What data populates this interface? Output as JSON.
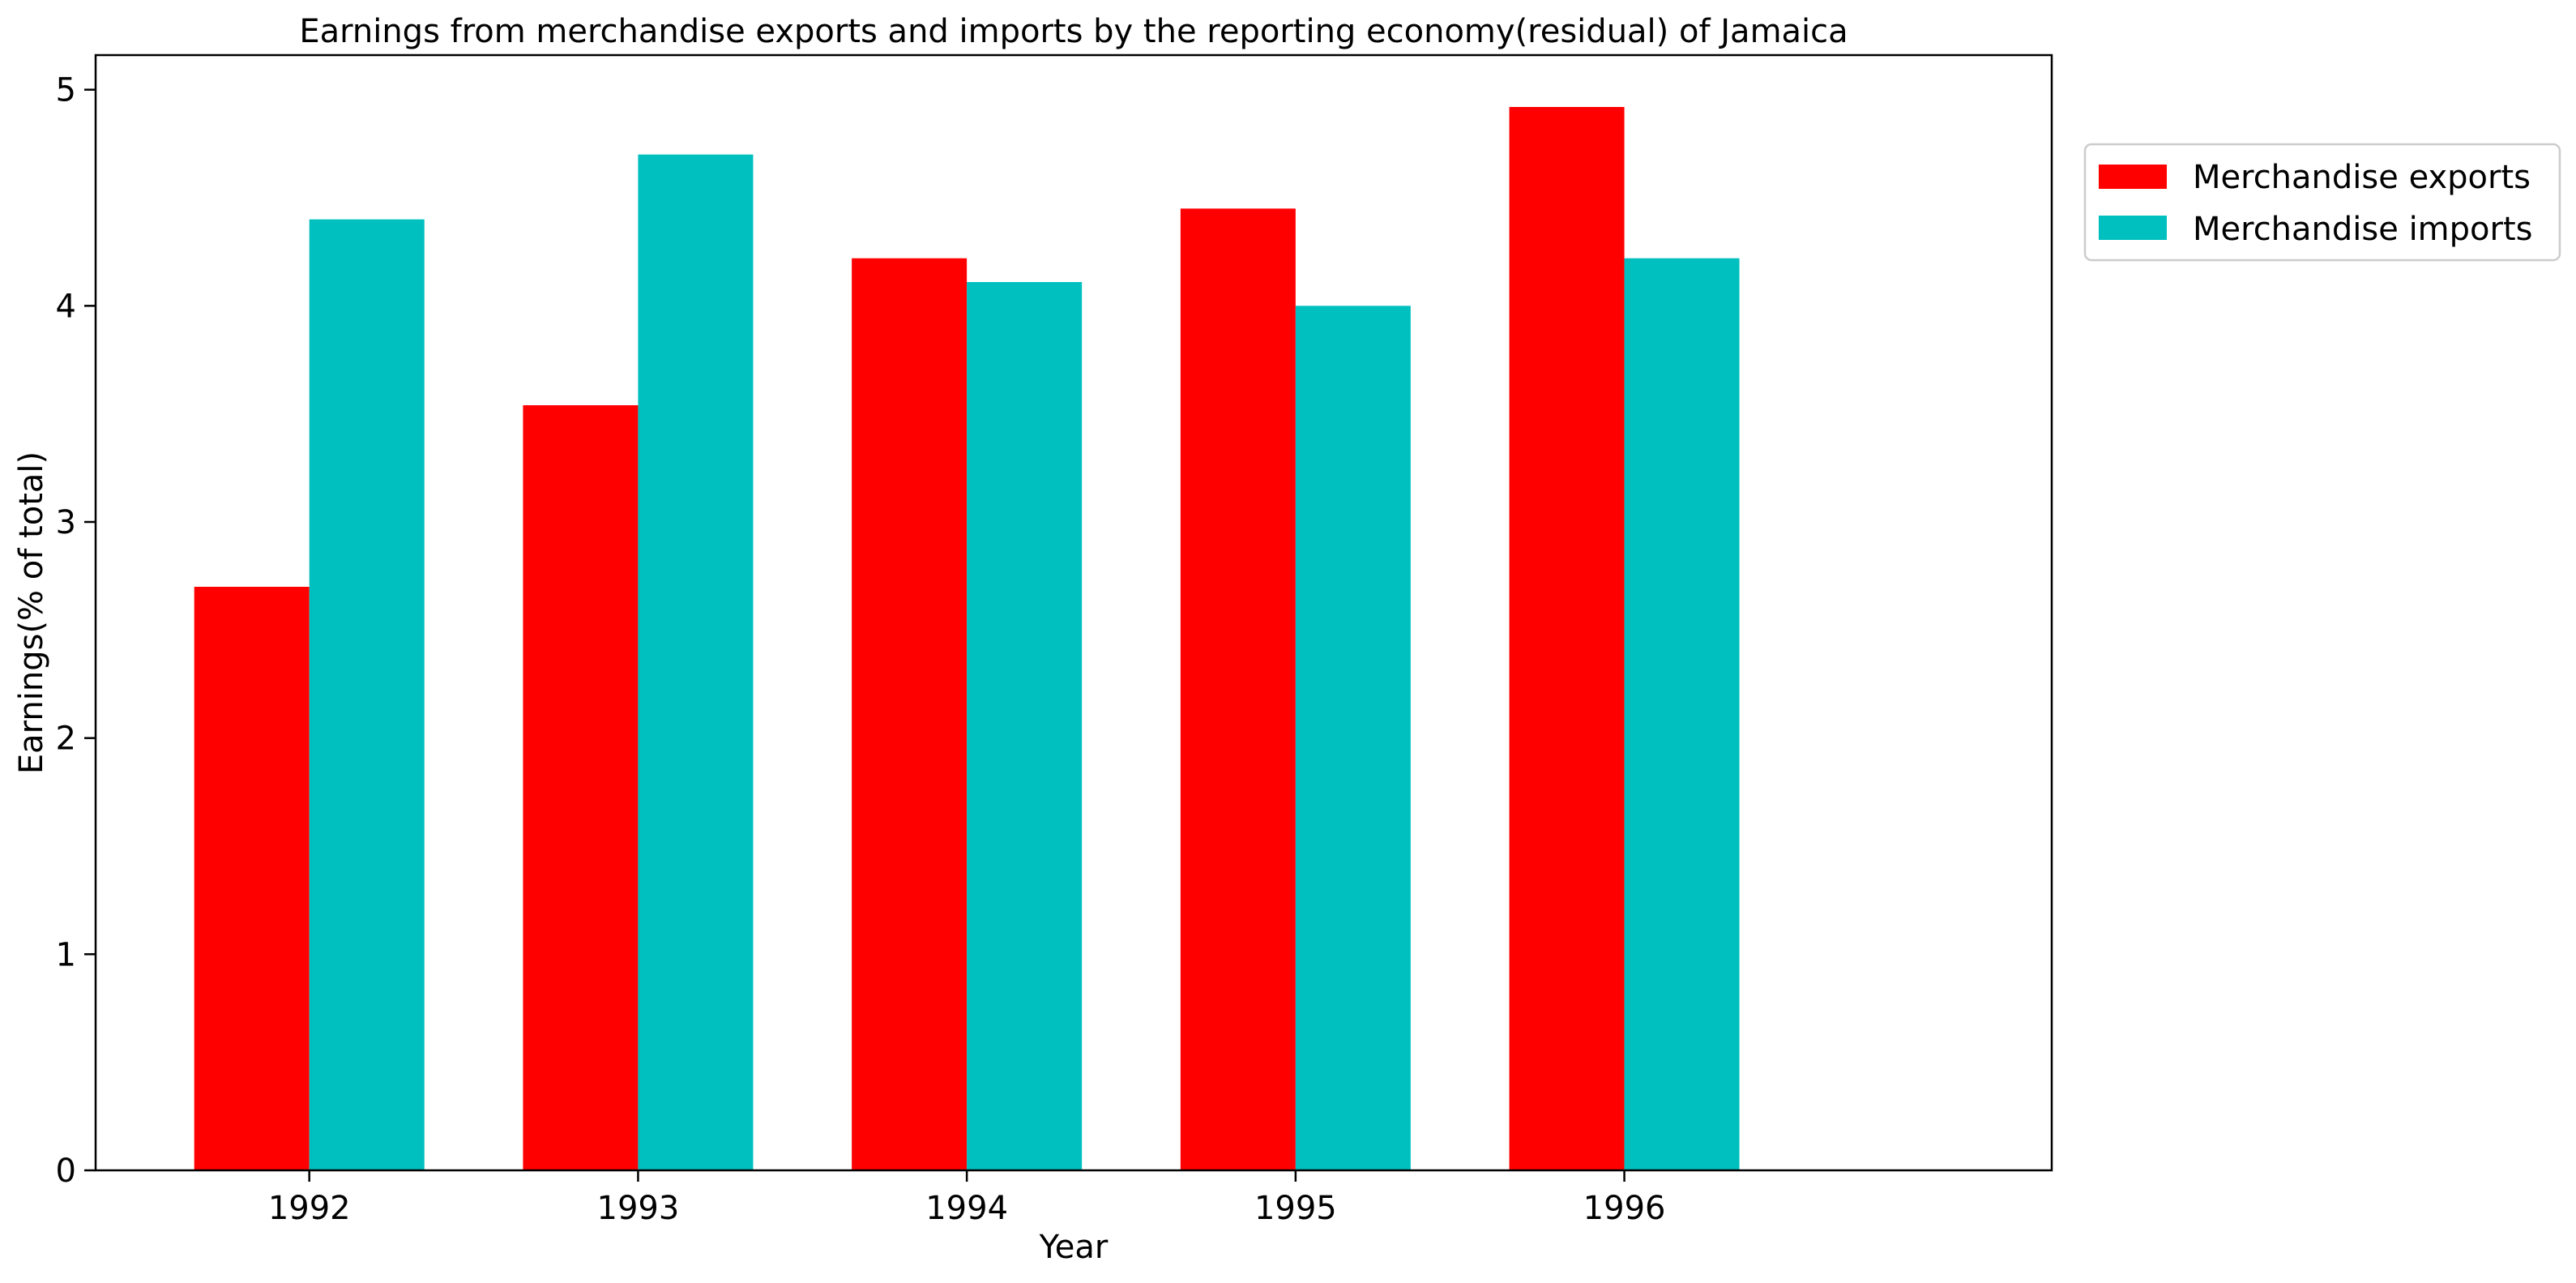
{
  "chart_data": {
    "type": "bar",
    "title": "Earnings from merchandise exports and imports by the reporting economy(residual) of Jamaica",
    "xlabel": "Year",
    "ylabel": "Earnings(% of total)",
    "categories": [
      "1992",
      "1993",
      "1994",
      "1995",
      "1996"
    ],
    "series": [
      {
        "name": "Merchandise exports",
        "color": "#ff0000",
        "values": [
          2.7,
          3.54,
          4.22,
          4.45,
          4.92
        ]
      },
      {
        "name": "Merchandise imports",
        "color": "#00bfbf",
        "values": [
          4.4,
          4.7,
          4.11,
          4.0,
          4.22
        ]
      }
    ],
    "ylim": [
      0,
      5.16
    ],
    "yticks": [
      "0",
      "1",
      "2",
      "3",
      "4",
      "5"
    ],
    "grid": false,
    "legend_position": "outside-top-right"
  }
}
